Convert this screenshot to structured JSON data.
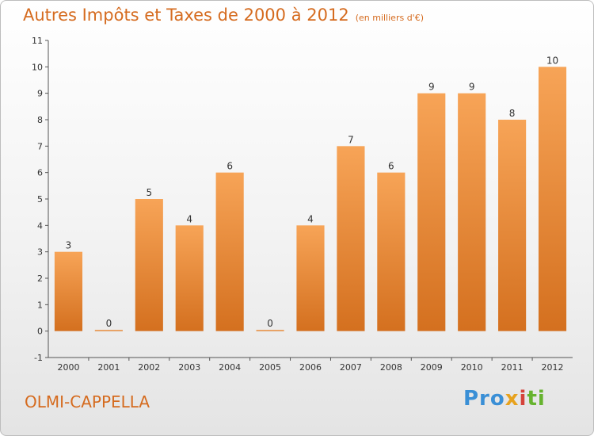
{
  "header": {
    "title": "Autres Impôts et Taxes de 2000 à 2012",
    "subtitle": "(en milliers d'€)"
  },
  "footer": {
    "commune": "OLMI-CAPPELLA",
    "brand": [
      "Pro",
      "x",
      "i",
      "ti"
    ]
  },
  "colors": {
    "bar_top": "#f7a457",
    "bar_bottom": "#d4701f",
    "title": "#d56b1f"
  },
  "chart_data": {
    "type": "bar",
    "categories": [
      "2000",
      "2001",
      "2002",
      "2003",
      "2004",
      "2005",
      "2006",
      "2007",
      "2008",
      "2009",
      "2010",
      "2011",
      "2012"
    ],
    "values": [
      3,
      0,
      5,
      4,
      6,
      0,
      4,
      7,
      6,
      9,
      9,
      8,
      10
    ],
    "data_labels": [
      "3",
      "0",
      "5",
      "4",
      "6",
      "0",
      "4",
      "7",
      "6",
      "9",
      "9",
      "8",
      "10"
    ],
    "ylim": [
      -1,
      11
    ],
    "yticks": [
      -1,
      0,
      1,
      2,
      3,
      4,
      5,
      6,
      7,
      8,
      9,
      10,
      11
    ],
    "ytick_labels": [
      "-1",
      "0",
      "1",
      "2",
      "3",
      "4",
      "5",
      "6",
      "7",
      "8",
      "9",
      "10",
      "11"
    ],
    "xlabel": "",
    "ylabel": "",
    "grid": false,
    "legend": "none"
  }
}
